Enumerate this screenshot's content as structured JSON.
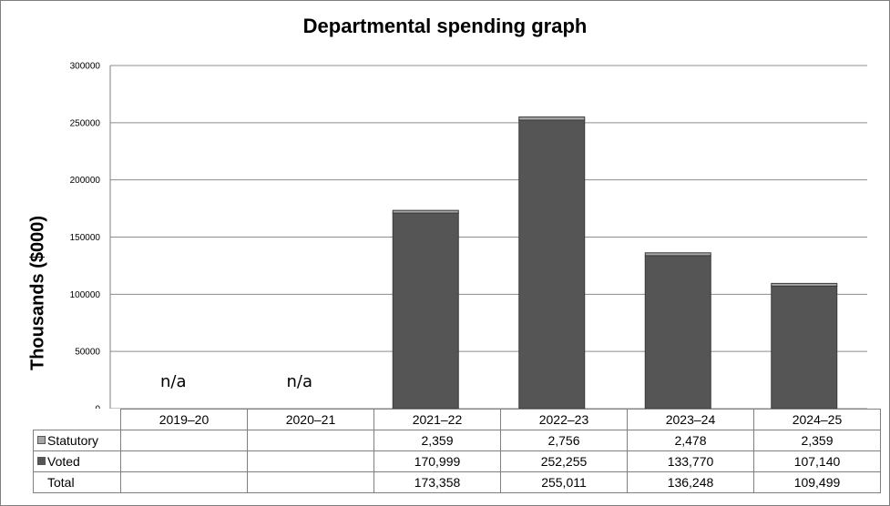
{
  "chart_data": {
    "type": "bar",
    "stacked": true,
    "title": "Departmental spending graph",
    "ylabel": "Thousands ($000)",
    "xlabel": "",
    "ylim": [
      0,
      300000
    ],
    "yticks": [
      0,
      50000,
      100000,
      150000,
      200000,
      250000,
      300000
    ],
    "ytick_labels": [
      "0",
      "50000",
      "100000",
      "150000",
      "200000",
      "250000",
      "300000"
    ],
    "grid": true,
    "categories": [
      "2019–20",
      "2020–21",
      "2021–22",
      "2022–23",
      "2023–24",
      "2024–25"
    ],
    "na_label": "n/a",
    "series": [
      {
        "name": "Voted",
        "color": "#555555",
        "values": [
          null,
          null,
          170999,
          252255,
          133770,
          107140
        ],
        "labels": [
          "",
          "",
          "170,999",
          "252,255",
          "133,770",
          "107,140"
        ]
      },
      {
        "name": "Statutory",
        "color": "#a6a6a6",
        "values": [
          null,
          null,
          2359,
          2756,
          2478,
          2359
        ],
        "labels": [
          "",
          "",
          "2,359",
          "2,756",
          "2,478",
          "2,359"
        ]
      }
    ],
    "total": {
      "name": "Total",
      "values": [
        null,
        null,
        173358,
        255011,
        136248,
        109499
      ],
      "labels": [
        "",
        "",
        "173,358",
        "255,011",
        "136,248",
        "109,499"
      ]
    }
  }
}
